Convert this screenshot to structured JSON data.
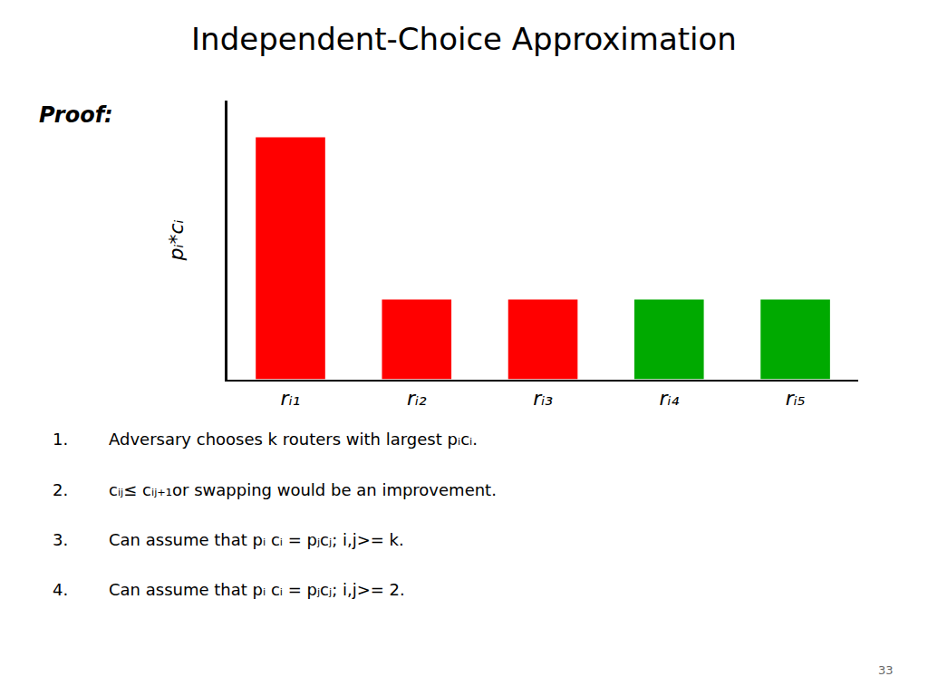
{
  "chart_data": {
    "type": "bar",
    "title": "Independent-Choice Approximation",
    "categories": [
      "rᵢ₁",
      "rᵢ₂",
      "rᵢ₃",
      "rᵢ₄",
      "rᵢ₅"
    ],
    "values": [
      1.0,
      0.33,
      0.33,
      0.33,
      0.33
    ],
    "colors": [
      "#ff0000",
      "#ff0000",
      "#ff0000",
      "#00aa00",
      "#00aa00"
    ],
    "ylabel": "pᵢ*cᵢ",
    "ylim": [
      0,
      1.15
    ],
    "tick_labels": "x",
    "grid": false,
    "annotations": [
      "Proof:",
      "1.",
      "Adversary chooses k routers with largest pᵢcᵢ.",
      "2.",
      "cᵢⱼ≤ cᵢⱼ₊₁or swapping would be an improvement.",
      "3.",
      "Can assume that pᵢ cᵢ = pⱼcⱼ; i,j>= k.",
      "4.",
      "Can assume that pᵢ cᵢ = pⱼcⱼ; i,j>= 2.",
      "33"
    ]
  }
}
